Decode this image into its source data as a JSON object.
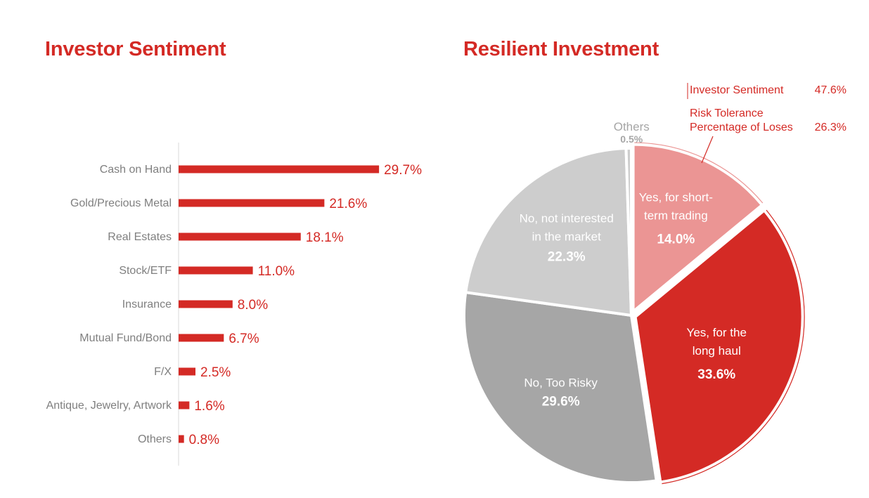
{
  "colors": {
    "accent": "#d42a25",
    "pink": "#eb9594",
    "light_gray": "#cdcdcd",
    "mid_gray": "#a6a6a6",
    "label_gray": "#7f7f7f",
    "axis": "#d9d9d9"
  },
  "chart_data": [
    {
      "type": "bar",
      "orientation": "horizontal",
      "title": "Investor Sentiment",
      "categories": [
        "Cash on Hand",
        "Gold/Precious Metal",
        "Real Estates",
        "Stock/ETF",
        "Insurance",
        "Mutual Fund/Bond",
        "F/X",
        "Antique, Jewelry, Artwork",
        "Others"
      ],
      "values": [
        29.7,
        21.6,
        18.1,
        11.0,
        8.0,
        6.7,
        2.5,
        1.6,
        0.8
      ],
      "value_labels": [
        "29.7%",
        "21.6%",
        "18.1%",
        "11.0%",
        "8.0%",
        "6.7%",
        "2.5%",
        "1.6%",
        "0.8%"
      ],
      "unit": "%",
      "color": "#d42a25"
    },
    {
      "type": "pie",
      "title": "Resilient Investment",
      "slices": [
        {
          "label": "Yes, for short-term trading",
          "label_lines": [
            "Yes, for short-",
            "term trading"
          ],
          "value": 14.0,
          "value_label": "14.0%",
          "color": "#eb9594",
          "highlight": true
        },
        {
          "label": "Yes, for the long haul",
          "label_lines": [
            "Yes, for the",
            "long haul"
          ],
          "value": 33.6,
          "value_label": "33.6%",
          "color": "#d42a25",
          "highlight": true
        },
        {
          "label": "No, Too Risky",
          "label_lines": [
            "No, Too Risky"
          ],
          "value": 29.6,
          "value_label": "29.6%",
          "color": "#a6a6a6",
          "highlight": false
        },
        {
          "label": "No, not interested in the market",
          "label_lines": [
            "No, not interested",
            "in the market"
          ],
          "value": 22.3,
          "value_label": "22.3%",
          "color": "#cdcdcd",
          "highlight": false
        },
        {
          "label": "Others",
          "label_lines": [
            "Others"
          ],
          "value": 0.5,
          "value_label": "0.5%",
          "color": "#cdcdcd",
          "highlight": false
        }
      ],
      "annotation": {
        "rows": [
          {
            "label_lines": [
              "Investor Sentiment"
            ],
            "value": "47.6%"
          },
          {
            "label_lines": [
              "Risk Tolerance",
              "Percentage of Loses"
            ],
            "value": "26.3%"
          }
        ]
      }
    }
  ]
}
